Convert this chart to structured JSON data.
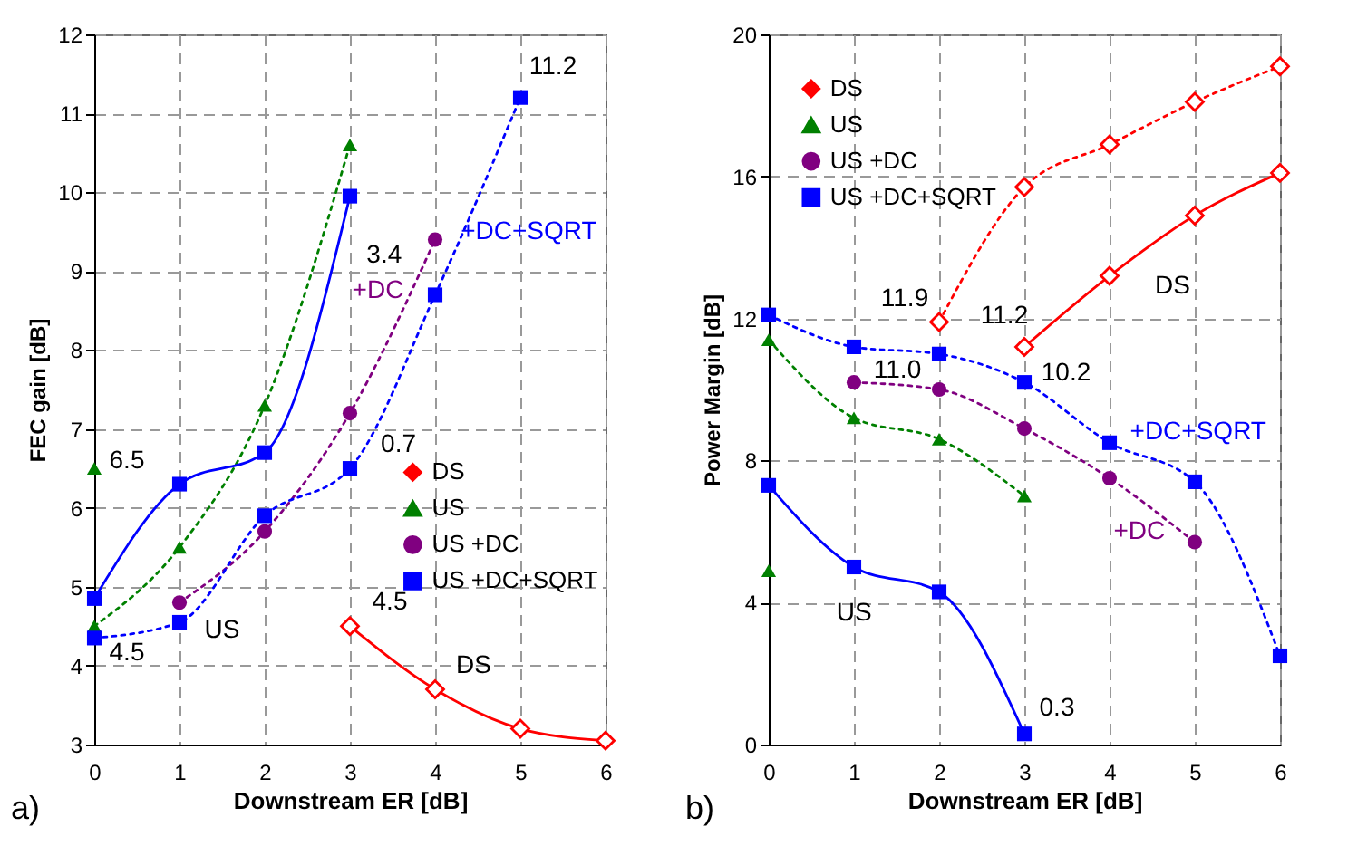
{
  "chart_data": [
    {
      "type": "line",
      "xlabel": "Downstream ER [dB]",
      "ylabel": "FEC gain [dB]",
      "xlim": [
        0,
        6
      ],
      "ylim": [
        3,
        12
      ],
      "xticks": [
        0,
        1,
        2,
        3,
        4,
        5,
        6
      ],
      "yticks": [
        3,
        4,
        5,
        6,
        7,
        8,
        9,
        10,
        11,
        12
      ],
      "grid": true,
      "legend": "right",
      "series": [
        {
          "name": "DS",
          "color": "#ff0000",
          "marker": "diamond",
          "line_style": "solid",
          "x": [
            3,
            4,
            5,
            6
          ],
          "values": [
            4.5,
            3.7,
            3.2,
            3.05
          ]
        },
        {
          "name": "US",
          "color": "#008000",
          "marker": "triangle",
          "line_style": "dotted",
          "x": [
            0,
            1,
            2,
            3
          ],
          "values": [
            4.5,
            5.5,
            7.3,
            10.6
          ]
        },
        {
          "color": "#008000",
          "type": "scatter",
          "marker": "triangle",
          "x": [
            0
          ],
          "values": [
            6.5
          ]
        },
        {
          "name": "US +DC",
          "color": "#800080",
          "marker": "circle",
          "line_style": "dotted",
          "x": [
            1,
            2,
            3,
            4
          ],
          "values": [
            4.8,
            5.7,
            7.2,
            9.4
          ]
        },
        {
          "name": "US +DC+SQRT",
          "color": "#0000ff",
          "marker": "square",
          "line_style": "solid",
          "x": [
            0,
            1,
            2,
            3
          ],
          "values": [
            4.85,
            6.3,
            6.7,
            9.95
          ]
        },
        {
          "color": "#0000ff",
          "marker": "square",
          "line_style": "dotted",
          "x": [
            0,
            1,
            2,
            3,
            4,
            5
          ],
          "values": [
            4.35,
            4.55,
            5.9,
            6.5,
            8.7,
            11.2
          ]
        }
      ],
      "annotations": [
        {
          "text": "6.5",
          "x": 0,
          "y": 6.5
        },
        {
          "text": "4.5",
          "x": 0,
          "y": 4.5
        },
        {
          "text": "11.2",
          "x": 5,
          "y": 11.2
        },
        "3.4",
        "+DC",
        "+DC+SQRT",
        "0.7",
        "US",
        {
          "text": "4.5",
          "x": 3,
          "y": 4.5
        },
        "DS",
        "a)"
      ]
    },
    {
      "type": "line",
      "xlabel": "Downstream ER [dB]",
      "ylabel": "Power Margin [dB]",
      "xlim": [
        0,
        6
      ],
      "ylim": [
        0,
        20
      ],
      "xticks": [
        0,
        1,
        2,
        3,
        4,
        5,
        6
      ],
      "yticks": [
        0,
        4,
        8,
        12,
        16,
        20
      ],
      "grid": true,
      "legend": "top left",
      "series": [
        {
          "name": "DS",
          "color": "#ff0000",
          "marker": "diamond",
          "line_style": "dotted",
          "x": [
            2,
            3,
            4,
            5,
            6
          ],
          "values": [
            11.9,
            15.7,
            16.9,
            18.1,
            19.1
          ]
        },
        {
          "color": "#ff0000",
          "marker": "diamond",
          "line_style": "solid",
          "x": [
            3,
            4,
            5,
            6
          ],
          "values": [
            11.2,
            13.2,
            14.9,
            16.1
          ]
        },
        {
          "name": "US",
          "color": "#008000",
          "marker": "triangle",
          "line_style": "dotted",
          "x": [
            0,
            1,
            2,
            3
          ],
          "values": [
            11.4,
            9.2,
            8.6,
            7.0
          ]
        },
        {
          "color": "#008000",
          "type": "scatter",
          "marker": "triangle",
          "x": [
            0
          ],
          "values": [
            4.9
          ]
        },
        {
          "name": "US +DC",
          "color": "#800080",
          "marker": "circle",
          "line_style": "dotted",
          "x": [
            1,
            2,
            3,
            4,
            5
          ],
          "values": [
            10.2,
            10.0,
            8.9,
            7.5,
            5.7
          ]
        },
        {
          "name": "US +DC+SQRT",
          "color": "#0000ff",
          "marker": "square",
          "line_style": "dotted",
          "x": [
            0,
            1,
            2,
            3,
            4,
            5,
            6
          ],
          "values": [
            12.1,
            11.2,
            11.0,
            10.2,
            8.5,
            7.4,
            2.5
          ]
        },
        {
          "color": "#0000ff",
          "marker": "square",
          "line_style": "solid",
          "x": [
            0,
            1,
            2,
            3
          ],
          "values": [
            7.3,
            5.0,
            4.3,
            0.3
          ]
        }
      ],
      "annotations": [
        {
          "text": "11.9",
          "x": 2,
          "y": 11.9
        },
        {
          "text": "11.2",
          "x": 3,
          "y": 11.2
        },
        {
          "text": "11.0",
          "x": 2,
          "y": 11.0
        },
        {
          "text": "10.2",
          "x": 3,
          "y": 10.2
        },
        {
          "text": "0.3",
          "x": 3,
          "y": 0.3
        },
        "DS",
        "US",
        "+DC+SQRT",
        "+DC",
        "b)"
      ]
    }
  ]
}
